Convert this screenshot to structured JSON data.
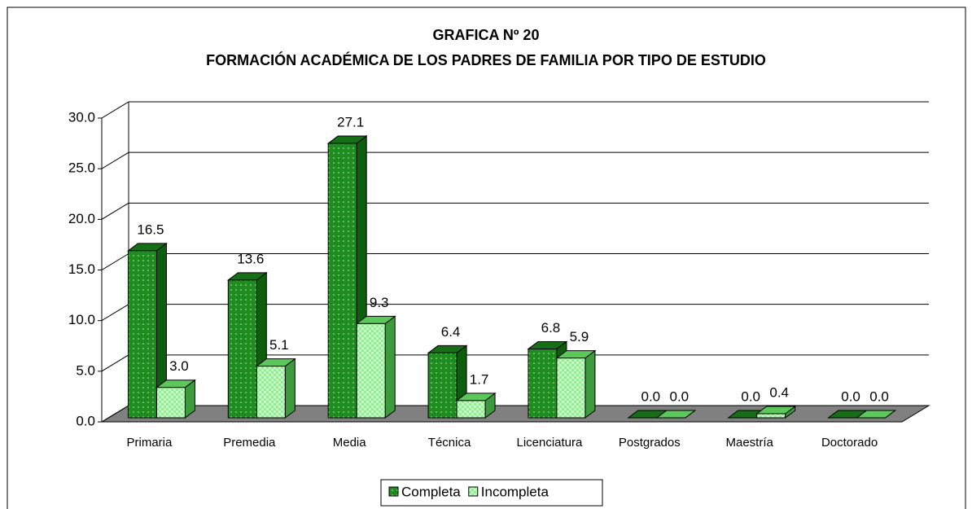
{
  "chart_data": {
    "type": "bar3d",
    "title": "GRAFICA Nº 20",
    "subtitle": "FORMACIÓN ACADÉMICA DE LOS PADRES DE FAMILIA POR TIPO DE ESTUDIO",
    "categories": [
      "Primaria",
      "Premedia",
      "Media",
      "Técnica",
      "Licenciatura",
      "Postgrados",
      "Maestría",
      "Doctorado"
    ],
    "series": [
      {
        "name": "Completa",
        "color": "#1e8c1e",
        "values": [
          16.5,
          13.6,
          27.1,
          6.4,
          6.8,
          0.0,
          0.0,
          0.0
        ],
        "value_labels": [
          "16.5",
          "13.6",
          "27.1",
          "6.4",
          "6.8",
          "0.0",
          "0.0",
          "0.0"
        ]
      },
      {
        "name": "Incompleta",
        "color": "#8ef08e",
        "values": [
          3.0,
          5.1,
          9.3,
          1.7,
          5.9,
          0.0,
          0.4,
          0.0
        ],
        "value_labels": [
          "3.0",
          "5.1",
          "9.3",
          "1.7",
          "5.9",
          "0.0",
          "0.4",
          "0.0"
        ]
      }
    ],
    "ylim": [
      0,
      30
    ],
    "yticks": [
      {
        "value": 0,
        "label": "0.0"
      },
      {
        "value": 5,
        "label": "5.0"
      },
      {
        "value": 10,
        "label": "10.0"
      },
      {
        "value": 15,
        "label": "15.0"
      },
      {
        "value": 20,
        "label": "20.0"
      },
      {
        "value": 25,
        "label": "25.0"
      },
      {
        "value": 30,
        "label": "30.0"
      }
    ],
    "grid": true,
    "legend": "bottom"
  }
}
